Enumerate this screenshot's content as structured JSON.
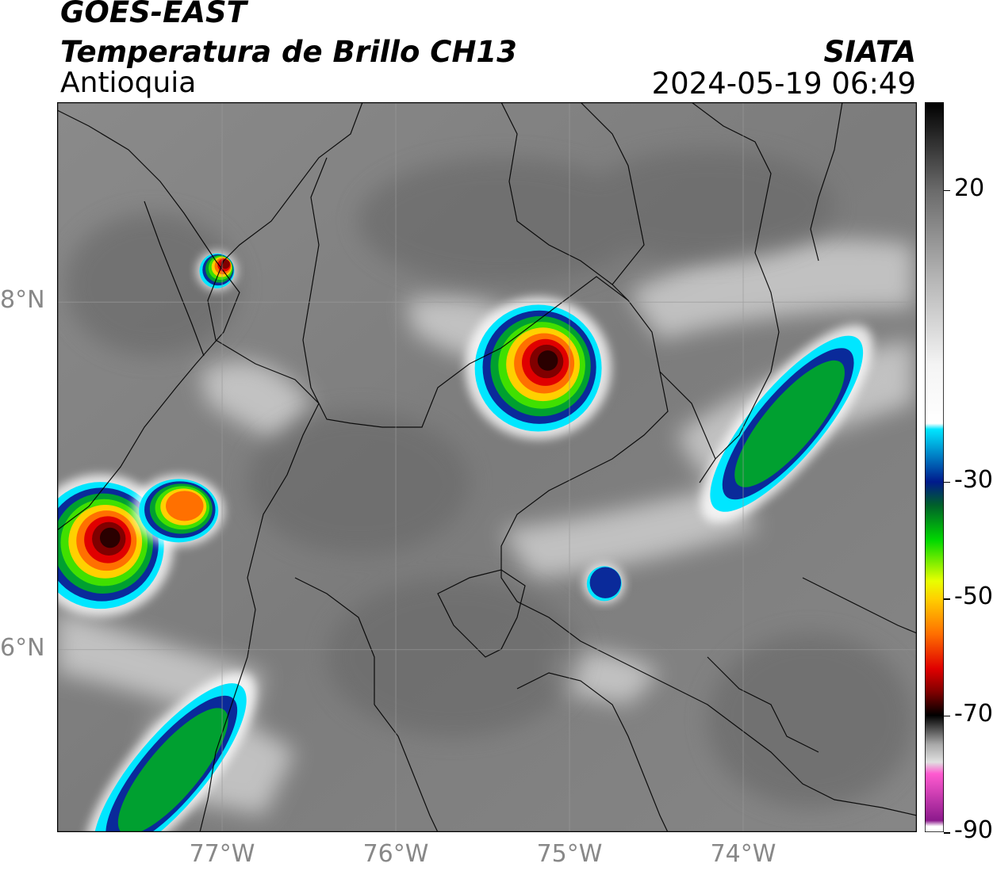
{
  "header": {
    "title_line1": "GOES-EAST",
    "title_line2": "Temperatura de Brillo CH13",
    "region": "Antioquia",
    "organization": "SIATA",
    "timestamp": "2024-05-19 06:49"
  },
  "map": {
    "extent_lon": [
      -77.95,
      -73.0
    ],
    "extent_lat": [
      4.95,
      9.15
    ],
    "lat_labels": [
      {
        "value": 8,
        "label": "8°N"
      },
      {
        "value": 6,
        "label": "6°N"
      }
    ],
    "lon_labels": [
      {
        "value": -77,
        "label": "77°W"
      },
      {
        "value": -76,
        "label": "76°W"
      },
      {
        "value": -75,
        "label": "75°W"
      },
      {
        "value": -74,
        "label": "74°W"
      }
    ],
    "storm_cells": [
      {
        "lon": -75.18,
        "lat": 7.62,
        "size": "large",
        "min_temp": -72
      },
      {
        "lon": -77.03,
        "lat": 8.18,
        "size": "small",
        "min_temp": -68
      },
      {
        "lon": -77.7,
        "lat": 6.6,
        "size": "large",
        "min_temp": -72
      },
      {
        "lon": -77.25,
        "lat": 6.8,
        "size": "medium",
        "min_temp": -60
      },
      {
        "lon": -73.75,
        "lat": 7.3,
        "size": "band",
        "min_temp": -42
      },
      {
        "lon": -77.3,
        "lat": 5.3,
        "size": "band",
        "min_temp": -38
      },
      {
        "lon": -74.8,
        "lat": 6.38,
        "size": "small",
        "min_temp": -35
      }
    ]
  },
  "colorbar": {
    "label": "",
    "range": [
      -90,
      35
    ],
    "ticks": [
      {
        "value": 20,
        "label": "20"
      },
      {
        "value": -30,
        "label": "-30"
      },
      {
        "value": -50,
        "label": "-50"
      },
      {
        "value": -70,
        "label": "-70"
      },
      {
        "value": -90,
        "label": "-90"
      }
    ],
    "color_stops": [
      {
        "value": 35,
        "color": "#000000"
      },
      {
        "value": 20,
        "color": "#6a6a6a"
      },
      {
        "value": 5,
        "color": "#b4b4b4"
      },
      {
        "value": -10,
        "color": "#f4f4f4"
      },
      {
        "value": -20,
        "color": "#ffffff"
      },
      {
        "value": -21,
        "color": "#00e6ff"
      },
      {
        "value": -30,
        "color": "#001a8c"
      },
      {
        "value": -34,
        "color": "#00602a"
      },
      {
        "value": -40,
        "color": "#00d800"
      },
      {
        "value": -47,
        "color": "#e8ff00"
      },
      {
        "value": -50,
        "color": "#ffd000"
      },
      {
        "value": -56,
        "color": "#ff7000"
      },
      {
        "value": -62,
        "color": "#e00000"
      },
      {
        "value": -66,
        "color": "#800000"
      },
      {
        "value": -70,
        "color": "#000000"
      },
      {
        "value": -75,
        "color": "#a9a9a9"
      },
      {
        "value": -78,
        "color": "#e0e0e0"
      },
      {
        "value": -80,
        "color": "#ff5ad0"
      },
      {
        "value": -88,
        "color": "#8c1a8c"
      },
      {
        "value": -89,
        "color": "#ffffff"
      }
    ]
  }
}
